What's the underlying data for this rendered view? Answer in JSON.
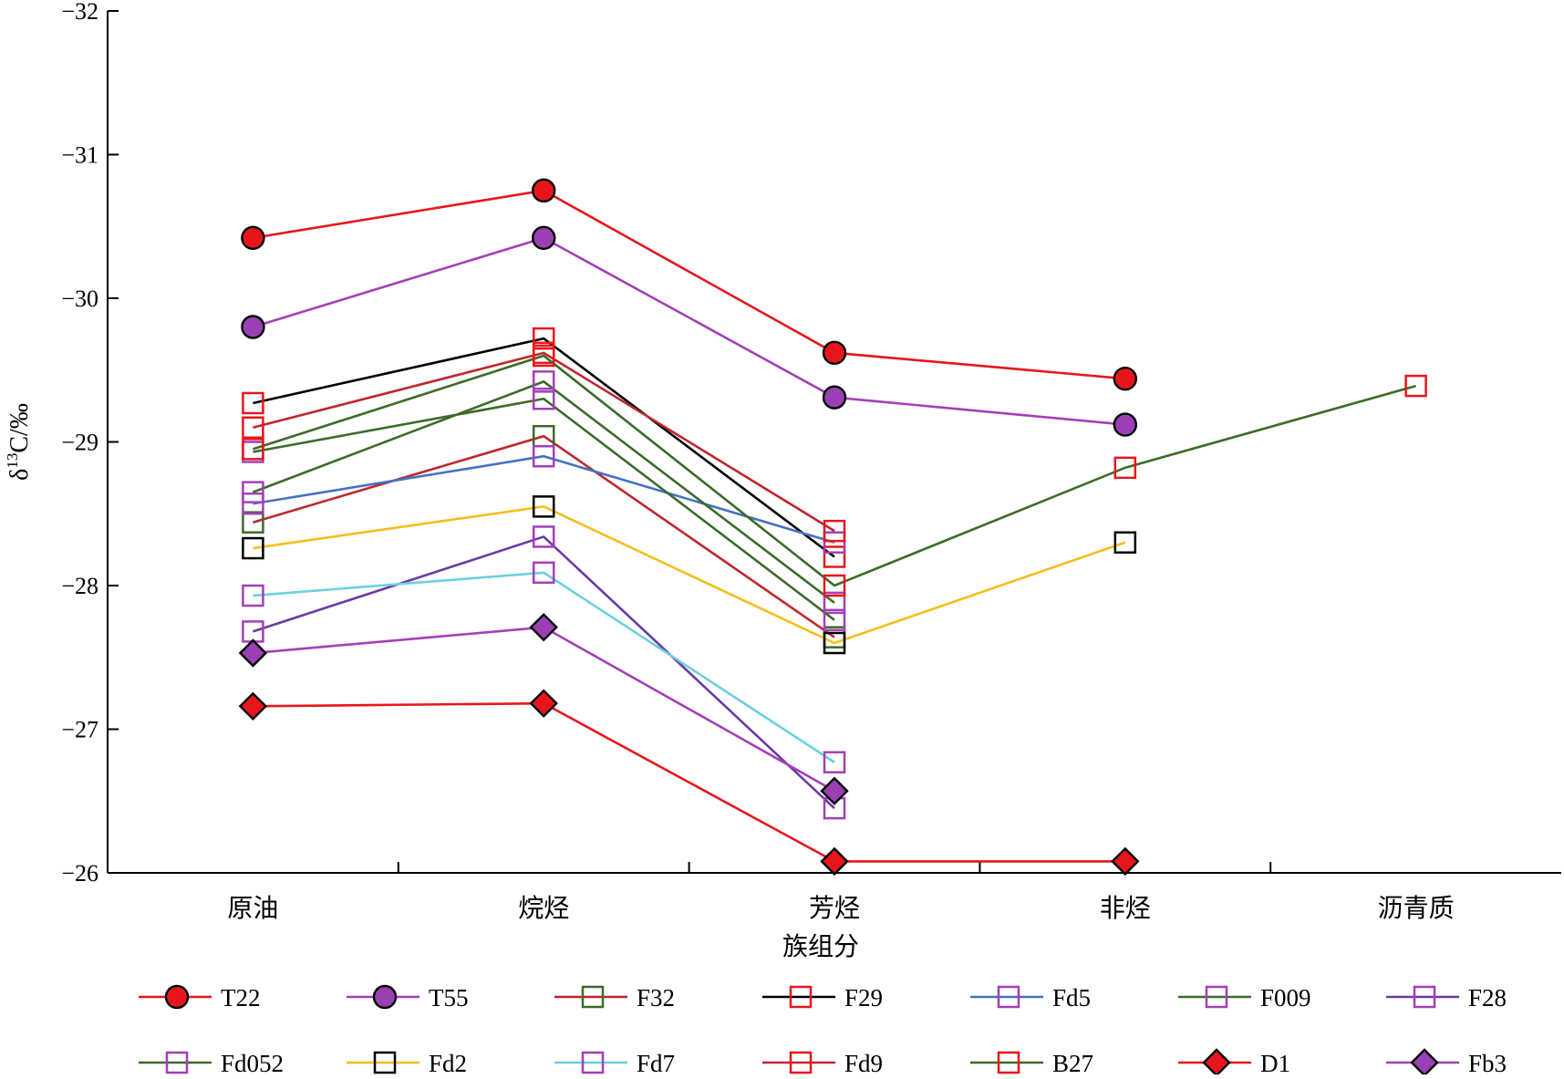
{
  "chart_data": {
    "type": "line",
    "xlabel": "族组分",
    "ylabel": "δ13C/‰",
    "ylabel_parts": {
      "symbol": "δ",
      "sup": "13",
      "rest": "C/‰"
    },
    "categories": [
      "原油",
      "烷烃",
      "芳烃",
      "非烃",
      "沥青质"
    ],
    "ylim": [
      -32,
      -26
    ],
    "y_reversed": true,
    "yticks": [
      -32,
      -31,
      -30,
      -29,
      -28,
      -27,
      -26
    ],
    "ytick_labels": [
      "−32",
      "−31",
      "−30",
      "−29",
      "−28",
      "−27",
      "−26"
    ],
    "grid": false,
    "legend_position": "bottom",
    "series": [
      {
        "name": "T22",
        "color": "#e8161c",
        "marker": "circle",
        "markerFill": "#e8161c",
        "values": [
          -30.42,
          -30.75,
          -29.62,
          -29.44,
          null
        ]
      },
      {
        "name": "T55",
        "color": "#a43fb8",
        "marker": "circle",
        "markerFill": "#9b3fb5",
        "values": [
          -29.8,
          -30.42,
          -29.31,
          -29.12,
          null
        ]
      },
      {
        "name": "F32",
        "color": "#c0272d",
        "marker": "square",
        "markerFill": "none",
        "markerStroke": "#3d6b2a",
        "values": [
          -28.44,
          -29.04,
          -27.64,
          null,
          null
        ]
      },
      {
        "name": "F29",
        "color": "#000000",
        "marker": "square",
        "markerFill": "none",
        "markerStroke": "#e8161c",
        "values": [
          -29.27,
          -29.72,
          -28.2,
          null,
          null
        ]
      },
      {
        "name": "Fd5",
        "color": "#4472c4",
        "marker": "square",
        "markerFill": "none",
        "markerStroke": "#a43fb8",
        "values": [
          -28.57,
          -28.9,
          -28.3,
          null,
          null
        ]
      },
      {
        "name": "F009",
        "color": "#3d6b2a",
        "marker": "square",
        "markerFill": "none",
        "markerStroke": "#a43fb8",
        "values": [
          -28.65,
          -29.42,
          -27.88,
          null,
          null
        ]
      },
      {
        "name": "F28",
        "color": "#6a3aa8",
        "marker": "square",
        "markerFill": "none",
        "markerStroke": "#a43fb8",
        "values": [
          -27.68,
          -28.34,
          -26.45,
          null,
          null
        ]
      },
      {
        "name": "Fd052",
        "color": "#3d6b2a",
        "marker": "square",
        "markerFill": "none",
        "markerStroke": "#a43fb8",
        "values": [
          -28.93,
          -29.3,
          -27.76,
          null,
          null
        ]
      },
      {
        "name": "Fd2",
        "color": "#f5be1e",
        "marker": "square",
        "markerFill": "none",
        "markerStroke": "#000000",
        "values": [
          -28.26,
          -28.55,
          -27.6,
          -28.3,
          null
        ]
      },
      {
        "name": "Fd7",
        "color": "#6dcfe0",
        "marker": "square",
        "markerFill": "none",
        "markerStroke": "#a43fb8",
        "values": [
          -27.93,
          -28.09,
          -26.77,
          null,
          null
        ]
      },
      {
        "name": "Fd9",
        "color": "#c0272d",
        "marker": "square",
        "markerFill": "none",
        "markerStroke": "#e8161c",
        "values": [
          -29.1,
          -29.62,
          -28.38,
          null,
          null
        ]
      },
      {
        "name": "B27",
        "color": "#3d6b2a",
        "marker": "square",
        "markerFill": "none",
        "markerStroke": "#e8161c",
        "values": [
          -28.95,
          -29.6,
          -28.0,
          -28.82,
          -29.39
        ]
      },
      {
        "name": "D1",
        "color": "#e8161c",
        "marker": "diamond",
        "markerFill": "#e8161c",
        "values": [
          -27.16,
          -27.18,
          -26.08,
          -26.08,
          null
        ]
      },
      {
        "name": "Fb3",
        "color": "#a43fb8",
        "marker": "diamond",
        "markerFill": "#9b3fb5",
        "values": [
          -27.53,
          -27.71,
          -26.57,
          null,
          null
        ]
      }
    ]
  }
}
